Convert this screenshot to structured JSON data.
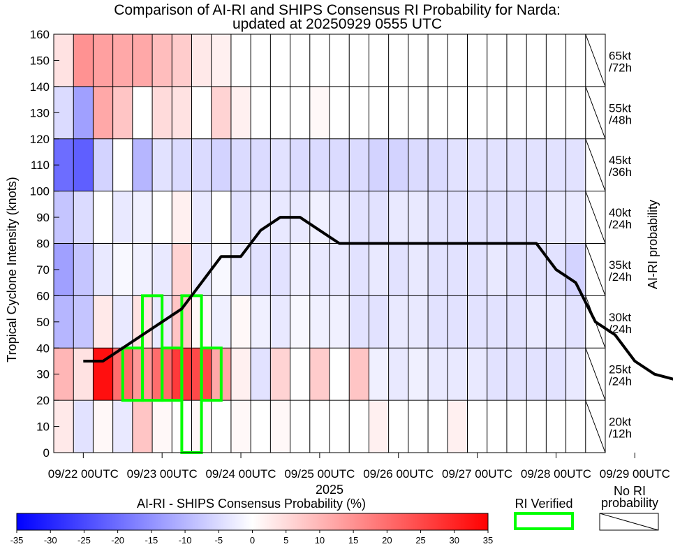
{
  "chart_data": {
    "type": "heatmap",
    "title_line1": "Comparison of AI-RI and SHIPS Consensus RI Probability for Narda:",
    "title_line2": "updated at 20250929 0555 UTC",
    "ylabel": "Tropical Cyclone Intensity (knots)",
    "xlabel": "2025",
    "right_label": "AI-RI probability",
    "colorbar_label": "AI-RI - SHIPS Consensus Probability (%)",
    "ri_verified_label": "RI Verified",
    "no_ri_label_line1": "No RI",
    "no_ri_label_line2": "probability",
    "ylim": [
      0,
      160
    ],
    "y_ticks": [
      "0",
      "10",
      "20",
      "30",
      "40",
      "50",
      "60",
      "70",
      "80",
      "90",
      "100",
      "110",
      "120",
      "130",
      "140",
      "150",
      "160"
    ],
    "x_tick_labels": [
      "09/22 00UTC",
      "09/23 00UTC",
      "09/24 00UTC",
      "09/25 00UTC",
      "09/26 00UTC",
      "09/27 00UTC",
      "09/28 00UTC",
      "09/29 00UTC"
    ],
    "colorbar_ticks": [
      "-35",
      "-30",
      "-25",
      "-20",
      "-15",
      "-10",
      "-5",
      "0",
      "5",
      "10",
      "15",
      "20",
      "25",
      "30",
      "35"
    ],
    "colorbar_range": [
      -35,
      35
    ],
    "time_steps": [
      "09/22 00UTC",
      "09/22 06UTC",
      "09/22 12UTC",
      "09/22 18UTC",
      "09/23 00UTC",
      "09/23 06UTC",
      "09/23 12UTC",
      "09/23 18UTC",
      "09/24 00UTC",
      "09/24 06UTC",
      "09/24 12UTC",
      "09/24 18UTC",
      "09/25 00UTC",
      "09/25 06UTC",
      "09/25 12UTC",
      "09/25 18UTC",
      "09/26 00UTC",
      "09/26 06UTC",
      "09/26 12UTC",
      "09/26 18UTC",
      "09/27 00UTC",
      "09/27 06UTC",
      "09/27 12UTC",
      "09/27 18UTC",
      "09/28 00UTC",
      "09/28 06UTC",
      "09/28 12UTC",
      "09/28 18UTC",
      "09/29 00UTC",
      "09/29 06UTC",
      "09/29 12UTC"
    ],
    "start_offset_steps": -1.5,
    "thresholds": [
      {
        "label1": "20kt",
        "label2": "/12h",
        "ymin": 0,
        "ymax": 20
      },
      {
        "label1": "25kt",
        "label2": "/24h",
        "ymin": 20,
        "ymax": 40
      },
      {
        "label1": "30kt",
        "label2": "/24h",
        "ymin": 40,
        "ymax": 60
      },
      {
        "label1": "35kt",
        "label2": "/24h",
        "ymin": 60,
        "ymax": 80
      },
      {
        "label1": "40kt",
        "label2": "/24h",
        "ymin": 80,
        "ymax": 100
      },
      {
        "label1": "45kt",
        "label2": "/36h",
        "ymin": 100,
        "ymax": 120
      },
      {
        "label1": "55kt",
        "label2": "/48h",
        "ymin": 120,
        "ymax": 140
      },
      {
        "label1": "65kt",
        "label2": "/72h",
        "ymin": 140,
        "ymax": 160
      }
    ],
    "diff_values": [
      [
        3,
        -4,
        1,
        -3,
        8,
        1,
        0,
        1,
        0,
        1,
        0,
        1,
        0,
        0,
        0,
        0,
        2,
        0,
        0,
        0,
        2,
        0,
        0,
        0,
        0,
        0,
        0,
        0
      ],
      [
        10,
        4,
        33,
        20,
        14,
        20,
        27,
        25,
        12,
        2,
        -4,
        6,
        0,
        7,
        0,
        8,
        -2,
        -3,
        -2,
        -3,
        -3,
        -3,
        -4,
        -4,
        -4,
        -4,
        -3,
        -2
      ],
      [
        -10,
        -8,
        3,
        -3,
        4,
        -3,
        8,
        1,
        -2,
        1,
        -2,
        -3,
        -1,
        -2,
        -2,
        -4,
        -4,
        -3,
        -3,
        -4,
        -4,
        -4,
        -4,
        -4,
        -3,
        -3,
        -4,
        -2
      ],
      [
        -13,
        -8,
        -3,
        -1,
        -2,
        -3,
        6,
        -3,
        -1,
        -3,
        -4,
        -4,
        -2,
        -3,
        -3,
        -4,
        -3,
        -4,
        -3,
        -4,
        -4,
        -4,
        -3,
        -4,
        -4,
        -4,
        -6,
        -3
      ],
      [
        -8,
        -5,
        0,
        -3,
        -2,
        0,
        2,
        -3,
        0,
        -4,
        -3,
        -3,
        -3,
        -2,
        -3,
        -4,
        -4,
        -3,
        -3,
        -4,
        -4,
        -4,
        -4,
        -4,
        -4,
        -3,
        -3,
        -3
      ],
      [
        -20,
        -22,
        -6,
        0,
        -10,
        -4,
        -5,
        -5,
        -6,
        -5,
        -5,
        -4,
        -5,
        -5,
        -5,
        -5,
        -6,
        -6,
        -5,
        -5,
        -4,
        -4,
        -4,
        -4,
        -4,
        -4,
        -4,
        -4
      ],
      [
        -5,
        -13,
        12,
        8,
        0,
        5,
        4,
        0,
        6,
        2,
        0,
        0,
        0,
        1,
        0,
        0,
        0,
        0,
        0,
        0,
        0,
        0,
        0,
        0,
        0,
        0,
        0,
        0
      ],
      [
        4,
        15,
        13,
        12,
        12,
        9,
        7,
        3,
        2,
        0,
        0,
        0,
        0,
        0,
        0,
        0,
        0,
        0,
        0,
        0,
        0,
        0,
        0,
        0,
        0,
        0,
        0,
        0
      ]
    ],
    "no_ri_columns": [
      27
    ],
    "intensity_line": [
      {
        "t": "09/22 00UTC",
        "v": 35
      },
      {
        "t": "09/22 06UTC",
        "v": 35
      },
      {
        "t": "09/22 12UTC",
        "v": 40
      },
      {
        "t": "09/22 18UTC",
        "v": 45
      },
      {
        "t": "09/23 00UTC",
        "v": 50
      },
      {
        "t": "09/23 06UTC",
        "v": 55
      },
      {
        "t": "09/23 12UTC",
        "v": 65
      },
      {
        "t": "09/23 18UTC",
        "v": 75
      },
      {
        "t": "09/24 00UTC",
        "v": 75
      },
      {
        "t": "09/24 06UTC",
        "v": 85
      },
      {
        "t": "09/24 12UTC",
        "v": 90
      },
      {
        "t": "09/24 18UTC",
        "v": 90
      },
      {
        "t": "09/25 00UTC",
        "v": 85
      },
      {
        "t": "09/25 06UTC",
        "v": 80
      },
      {
        "t": "09/25 12UTC",
        "v": 80
      },
      {
        "t": "09/25 18UTC",
        "v": 80
      },
      {
        "t": "09/26 00UTC",
        "v": 80
      },
      {
        "t": "09/26 06UTC",
        "v": 80
      },
      {
        "t": "09/26 12UTC",
        "v": 80
      },
      {
        "t": "09/26 18UTC",
        "v": 80
      },
      {
        "t": "09/27 00UTC",
        "v": 80
      },
      {
        "t": "09/27 06UTC",
        "v": 80
      },
      {
        "t": "09/27 12UTC",
        "v": 80
      },
      {
        "t": "09/27 18UTC",
        "v": 80
      },
      {
        "t": "09/28 00UTC",
        "v": 70
      },
      {
        "t": "09/28 06UTC",
        "v": 65
      },
      {
        "t": "09/28 12UTC",
        "v": 50
      },
      {
        "t": "09/28 18UTC",
        "v": 45
      },
      {
        "t": "09/29 00UTC",
        "v": 35
      },
      {
        "t": "09/29 06UTC",
        "v": 30
      },
      {
        "t": "09/29 12UTC",
        "v": 28
      }
    ],
    "ri_verified": [
      {
        "start": "09/22 12UTC",
        "end": "09/22 18UTC",
        "ymin": 20,
        "ymax": 40
      },
      {
        "start": "09/22 18UTC",
        "end": "09/23 00UTC",
        "ymin": 20,
        "ymax": 60
      },
      {
        "start": "09/23 00UTC",
        "end": "09/23 06UTC",
        "ymin": 20,
        "ymax": 40
      },
      {
        "start": "09/23 06UTC",
        "end": "09/23 12UTC",
        "ymin": 0,
        "ymax": 60
      },
      {
        "start": "09/23 12UTC",
        "end": "09/23 18UTC",
        "ymin": 20,
        "ymax": 40
      }
    ],
    "colors": {
      "negative_extreme": "#0000ff",
      "neutral": "#ffffff",
      "positive_extreme": "#ff0000",
      "intensity_line": "#000000",
      "ri_verified": "#00ff00"
    },
    "grid": true
  }
}
